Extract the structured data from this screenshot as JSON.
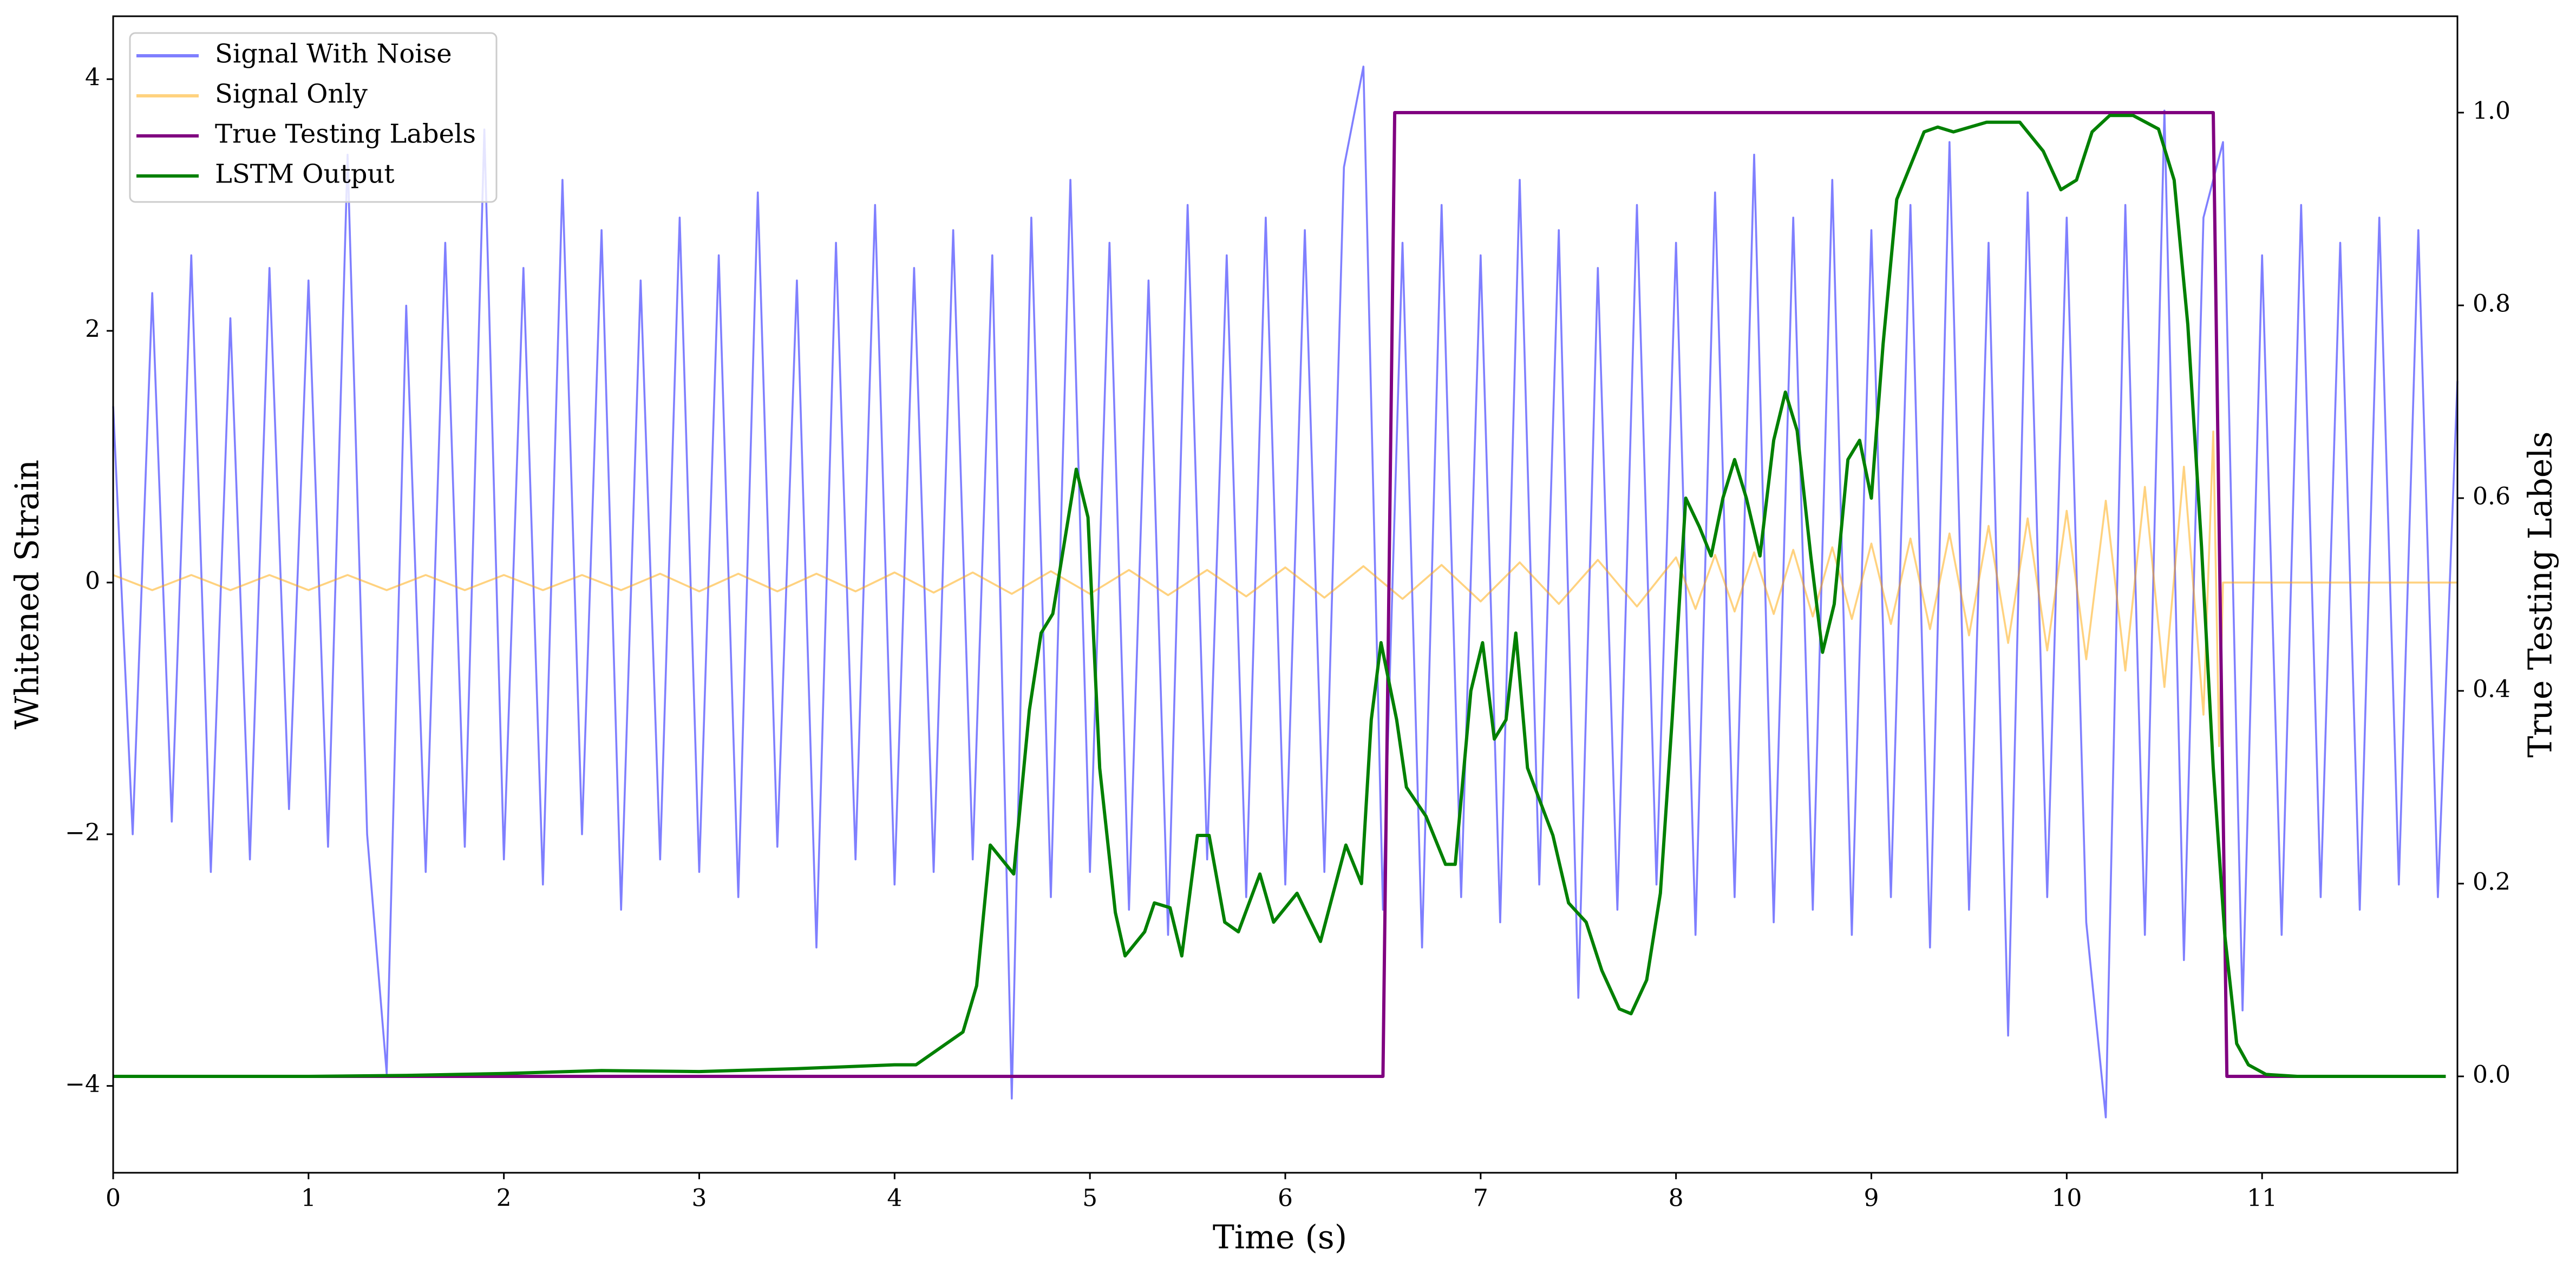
{
  "chart_data": {
    "type": "line",
    "xlabel": "Time (s)",
    "ylabel": "Whitened Strain",
    "y2label": "True Testing Labels",
    "xlim": [
      0,
      12
    ],
    "xticks": [
      0,
      1,
      2,
      3,
      4,
      5,
      6,
      7,
      8,
      9,
      10,
      11
    ],
    "ylim": [
      -4.69,
      4.5
    ],
    "yticks": [
      {
        "value": -4,
        "label": "−4"
      },
      {
        "value": -2,
        "label": "−2"
      },
      0,
      2,
      4
    ],
    "y2lim": [
      -0.1,
      1.1
    ],
    "y2ticks": [
      {
        "value": 0,
        "label": "0.0"
      },
      {
        "value": 0.2,
        "label": "0.2"
      },
      {
        "value": 0.4,
        "label": "0.4"
      },
      {
        "value": 0.6,
        "label": "0.6"
      },
      {
        "value": 0.8,
        "label": "0.8"
      },
      {
        "value": 1.0,
        "label": "1.0"
      }
    ],
    "legend": "upper left",
    "grid": false,
    "series": [
      {
        "name": "Signal With Noise",
        "color": "rgba(0,0,255,0.5)",
        "width": 1.2,
        "x": [
          0,
          0.1,
          0.2,
          0.3,
          0.4,
          0.5,
          0.6,
          0.7,
          0.8,
          0.9,
          1,
          1.1,
          1.2,
          1.3,
          1.4,
          1.5,
          1.6,
          1.7,
          1.8,
          1.9,
          2,
          2.1,
          2.2,
          2.3,
          2.4,
          2.5,
          2.6,
          2.7,
          2.8,
          2.9,
          3,
          3.1,
          3.2,
          3.3,
          3.4,
          3.5,
          3.6,
          3.7,
          3.8,
          3.9,
          4,
          4.1,
          4.2,
          4.3,
          4.4,
          4.5,
          4.6,
          4.7,
          4.8,
          4.9,
          5,
          5.1,
          5.2,
          5.3,
          5.4,
          5.5,
          5.6,
          5.7,
          5.8,
          5.9,
          6,
          6.1,
          6.2,
          6.3,
          6.4,
          6.5,
          6.6,
          6.7,
          6.8,
          6.9,
          7,
          7.1,
          7.2,
          7.3,
          7.4,
          7.5,
          7.6,
          7.7,
          7.8,
          7.9,
          8,
          8.1,
          8.2,
          8.3,
          8.4,
          8.5,
          8.6,
          8.7,
          8.8,
          8.9,
          9,
          9.1,
          9.2,
          9.3,
          9.4,
          9.5,
          9.6,
          9.7,
          9.8,
          9.9,
          10,
          10.1,
          10.2,
          10.3,
          10.4,
          10.5,
          10.6,
          10.7,
          10.8,
          10.9,
          11,
          11.1,
          11.2,
          11.3,
          11.4,
          11.5,
          11.6,
          11.7,
          11.8,
          11.9,
          12
        ],
        "values": [
          1.4,
          -2.0,
          2.3,
          -1.9,
          2.6,
          -2.3,
          2.1,
          -2.2,
          2.5,
          -1.8,
          2.4,
          -2.1,
          3.4,
          -2.0,
          -3.9,
          2.2,
          -2.3,
          2.7,
          -2.1,
          3.6,
          -2.2,
          2.5,
          -2.4,
          3.2,
          -2.0,
          2.8,
          -2.6,
          2.4,
          -2.2,
          2.9,
          -2.3,
          2.6,
          -2.5,
          3.1,
          -2.1,
          2.4,
          -2.9,
          2.7,
          -2.2,
          3.0,
          -2.4,
          2.5,
          -2.3,
          2.8,
          -2.2,
          2.6,
          -4.1,
          2.9,
          -2.5,
          3.2,
          -2.3,
          2.7,
          -2.6,
          2.4,
          -2.8,
          3.0,
          -2.2,
          2.6,
          -2.5,
          2.9,
          -2.4,
          2.8,
          -2.3,
          3.3,
          4.1,
          -2.6,
          2.7,
          -2.9,
          3.0,
          -2.5,
          2.6,
          -2.7,
          3.2,
          -2.4,
          2.8,
          -3.3,
          2.5,
          -2.6,
          3.0,
          -2.4,
          2.7,
          -2.8,
          3.1,
          -2.5,
          3.4,
          -2.7,
          2.9,
          -2.6,
          3.2,
          -2.8,
          2.8,
          -2.5,
          3.0,
          -2.9,
          3.5,
          -2.6,
          2.7,
          -3.6,
          3.1,
          -2.5,
          2.9,
          -2.7,
          -4.25,
          3.0,
          -2.8,
          3.75,
          -3.0,
          2.9,
          3.5,
          -3.4,
          2.6,
          -2.8,
          3.0,
          -2.5,
          2.7,
          -2.6,
          2.9,
          -2.4,
          2.8,
          -2.5,
          1.6
        ]
      },
      {
        "name": "Signal Only",
        "color": "rgba(255,165,0,0.5)",
        "width": 1.2,
        "x": [
          0,
          0.2,
          0.4,
          0.6,
          0.8,
          1,
          1.2,
          1.4,
          1.6,
          1.8,
          2,
          2.2,
          2.4,
          2.6,
          2.8,
          3,
          3.2,
          3.4,
          3.6,
          3.8,
          4,
          4.2,
          4.4,
          4.6,
          4.8,
          5,
          5.2,
          5.4,
          5.6,
          5.8,
          6,
          6.2,
          6.4,
          6.6,
          6.8,
          7,
          7.2,
          7.4,
          7.6,
          7.8,
          8,
          8.1,
          8.2,
          8.3,
          8.4,
          8.5,
          8.6,
          8.7,
          8.8,
          8.9,
          9,
          9.1,
          9.2,
          9.3,
          9.4,
          9.5,
          9.6,
          9.7,
          9.8,
          9.9,
          10,
          10.1,
          10.2,
          10.3,
          10.4,
          10.5,
          10.6,
          10.7,
          10.75,
          10.78,
          10.8,
          12
        ],
        "values": [
          0.06,
          -0.06,
          0.06,
          -0.06,
          0.06,
          -0.06,
          0.06,
          -0.06,
          0.06,
          -0.06,
          0.06,
          -0.06,
          0.06,
          -0.06,
          0.07,
          -0.07,
          0.07,
          -0.07,
          0.07,
          -0.07,
          0.08,
          -0.08,
          0.08,
          -0.09,
          0.09,
          -0.09,
          0.1,
          -0.1,
          0.1,
          -0.11,
          0.12,
          -0.12,
          0.13,
          -0.13,
          0.14,
          -0.15,
          0.16,
          -0.17,
          0.18,
          -0.19,
          0.2,
          -0.21,
          0.22,
          -0.23,
          0.24,
          -0.25,
          0.26,
          -0.27,
          0.28,
          -0.29,
          0.31,
          -0.33,
          0.35,
          -0.37,
          0.39,
          -0.42,
          0.45,
          -0.48,
          0.51,
          -0.54,
          0.57,
          -0.61,
          0.65,
          -0.7,
          0.76,
          -0.83,
          0.92,
          -1.05,
          1.2,
          -1.3,
          0,
          0
        ]
      },
      {
        "name": "True Testing Labels",
        "color": "#800080",
        "width": 2,
        "axis": "y2",
        "x": [
          0,
          6.5,
          6.56,
          10.75,
          10.82,
          11.94
        ],
        "values": [
          0,
          0,
          1,
          1,
          0,
          0
        ]
      },
      {
        "name": "LSTM Output",
        "color": "#008000",
        "width": 2,
        "axis": "y2",
        "x": [
          0,
          1,
          1.5,
          2,
          2.5,
          3,
          3.5,
          4,
          4.11,
          4.35,
          4.42,
          4.49,
          4.61,
          4.69,
          4.75,
          4.81,
          4.93,
          4.99,
          5.05,
          5.13,
          5.18,
          5.28,
          5.33,
          5.41,
          5.47,
          5.55,
          5.61,
          5.69,
          5.76,
          5.87,
          5.94,
          6.06,
          6.18,
          6.31,
          6.39,
          6.44,
          6.49,
          6.57,
          6.62,
          6.72,
          6.82,
          6.87,
          6.95,
          7.01,
          7.07,
          7.13,
          7.18,
          7.24,
          7.37,
          7.45,
          7.54,
          7.62,
          7.71,
          7.77,
          7.85,
          7.92,
          7.98,
          8.05,
          8.12,
          8.18,
          8.24,
          8.3,
          8.36,
          8.43,
          8.5,
          8.56,
          8.62,
          8.69,
          8.75,
          8.81,
          8.88,
          8.94,
          9,
          9.06,
          9.13,
          9.2,
          9.27,
          9.34,
          9.42,
          9.59,
          9.76,
          9.88,
          9.97,
          10.05,
          10.13,
          10.22,
          10.34,
          10.47,
          10.55,
          10.62,
          10.69,
          10.75,
          10.81,
          10.87,
          10.93,
          11.02,
          11.18,
          11.94
        ],
        "values": [
          0,
          0,
          0.001,
          0.003,
          0.006,
          0.005,
          0.008,
          0.012,
          0.012,
          0.046,
          0.094,
          0.24,
          0.21,
          0.38,
          0.46,
          0.48,
          0.63,
          0.58,
          0.32,
          0.17,
          0.125,
          0.15,
          0.18,
          0.175,
          0.125,
          0.25,
          0.25,
          0.16,
          0.15,
          0.21,
          0.16,
          0.19,
          0.14,
          0.24,
          0.2,
          0.37,
          0.45,
          0.37,
          0.3,
          0.27,
          0.22,
          0.22,
          0.4,
          0.45,
          0.35,
          0.37,
          0.46,
          0.32,
          0.25,
          0.18,
          0.16,
          0.11,
          0.07,
          0.065,
          0.1,
          0.19,
          0.37,
          0.6,
          0.57,
          0.54,
          0.6,
          0.64,
          0.6,
          0.54,
          0.66,
          0.71,
          0.67,
          0.54,
          0.44,
          0.49,
          0.64,
          0.66,
          0.6,
          0.76,
          0.91,
          0.945,
          0.98,
          0.985,
          0.98,
          0.99,
          0.99,
          0.96,
          0.92,
          0.93,
          0.98,
          0.997,
          0.997,
          0.983,
          0.93,
          0.78,
          0.55,
          0.32,
          0.145,
          0.034,
          0.012,
          0.002,
          0,
          0
        ]
      }
    ]
  }
}
